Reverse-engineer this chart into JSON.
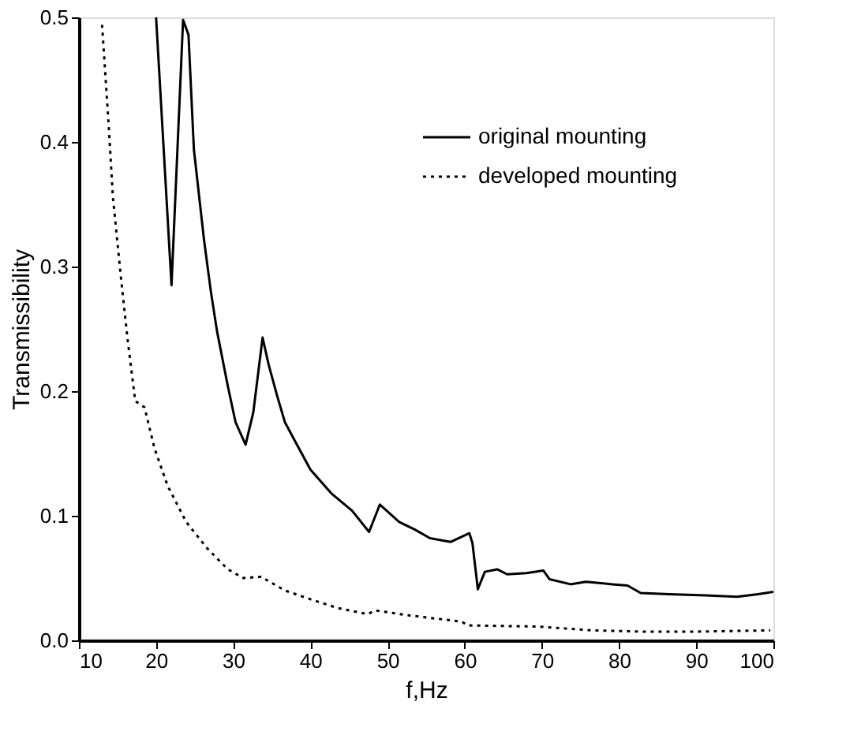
{
  "chart_data": {
    "type": "line",
    "xlabel": "f,Hz",
    "ylabel": "Transmissibility",
    "xlim": [
      10,
      100
    ],
    "xticks": [
      10,
      20,
      30,
      40,
      50,
      60,
      70,
      80,
      90,
      100
    ],
    "ylim": [
      0,
      0.5
    ],
    "yticks": [
      {
        "value": 0,
        "label": "0.0"
      },
      0.1,
      0.2,
      0.3,
      0.4,
      0.5
    ],
    "grid": false,
    "legend": "top right",
    "marker": "none",
    "series": [
      {
        "name": "original mounting",
        "color": "#000000",
        "line_style": "solid",
        "x": [
          20.0,
          22.0,
          23.5,
          24.2,
          24.9,
          26.2,
          27.1,
          27.9,
          29.3,
          30.3,
          31.6,
          32.6,
          33.8,
          34.6,
          35.7,
          36.7,
          38.0,
          40.0,
          42.7,
          45.4,
          47.6,
          49.0,
          51.5,
          53.5,
          55.5,
          58.2,
          60.6,
          61.0,
          61.7,
          62.6,
          64.2,
          65.5,
          68.0,
          70.2,
          71.0,
          73.7,
          75.7,
          79.1,
          81.1,
          82.8,
          86.5,
          91.2,
          95.3,
          98.0,
          100.0
        ],
        "values": [
          0.5,
          0.285,
          0.498,
          0.486,
          0.394,
          0.322,
          0.28,
          0.248,
          0.204,
          0.175,
          0.157,
          0.183,
          0.243,
          0.221,
          0.196,
          0.175,
          0.16,
          0.137,
          0.118,
          0.104,
          0.087,
          0.109,
          0.095,
          0.089,
          0.082,
          0.079,
          0.086,
          0.078,
          0.041,
          0.055,
          0.057,
          0.053,
          0.054,
          0.056,
          0.049,
          0.045,
          0.047,
          0.045,
          0.044,
          0.038,
          0.037,
          0.036,
          0.035,
          0.037,
          0.039
        ]
      },
      {
        "name": "developed mounting",
        "color": "#000000",
        "line_style": "dotted",
        "x": [
          13.0,
          13.8,
          14.4,
          15.5,
          16.3,
          17.3,
          18.5,
          19.8,
          21.5,
          23.9,
          26.6,
          29.3,
          31.3,
          33.6,
          36.7,
          40.0,
          43.5,
          47.4,
          48.4,
          52.8,
          59.6,
          60.4,
          69.7,
          76.4,
          83.2,
          89.9,
          99.6
        ],
        "values": [
          0.494,
          0.419,
          0.356,
          0.288,
          0.242,
          0.192,
          0.187,
          0.154,
          0.124,
          0.095,
          0.074,
          0.057,
          0.05,
          0.051,
          0.04,
          0.033,
          0.026,
          0.021,
          0.024,
          0.02,
          0.015,
          0.012,
          0.011,
          0.008,
          0.007,
          0.007,
          0.008
        ]
      }
    ]
  }
}
